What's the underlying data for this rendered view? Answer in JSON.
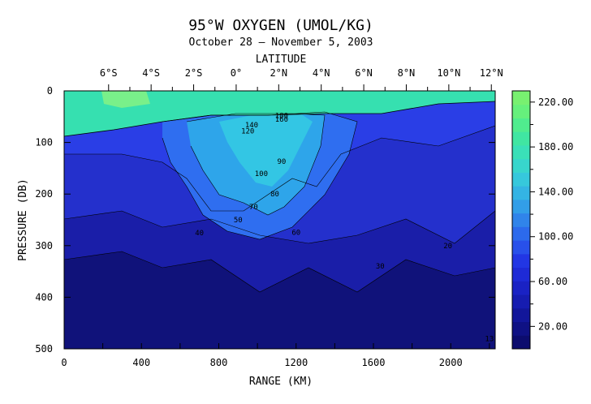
{
  "chart_data": {
    "type": "heatmap",
    "title": "95°W OXYGEN (UMOL/KG)",
    "subtitle": "October 28 – November 5, 2003",
    "top_axis_label": "LATITUDE",
    "top_ticks": [
      {
        "label": "6°S",
        "x": 230
      },
      {
        "label": "4°S",
        "x": 450
      },
      {
        "label": "2°S",
        "x": 670
      },
      {
        "label": "0°",
        "x": 890
      },
      {
        "label": "2°N",
        "x": 1110
      },
      {
        "label": "4°N",
        "x": 1330
      },
      {
        "label": "6°N",
        "x": 1550
      },
      {
        "label": "8°N",
        "x": 1770
      },
      {
        "label": "10°N",
        "x": 1990
      },
      {
        "label": "12°N",
        "x": 2210
      }
    ],
    "xlabel": "RANGE (KM)",
    "ylabel": "PRESSURE (DB)",
    "xlim": [
      0,
      2230
    ],
    "ylim": [
      0,
      500
    ],
    "x_ticks": [
      0,
      400,
      800,
      1200,
      1600,
      2000
    ],
    "y_ticks": [
      0,
      100,
      200,
      300,
      400,
      500
    ],
    "colorbar": {
      "min": 0,
      "max": 230,
      "labels": [
        "20.00",
        "60.00",
        "100.00",
        "140.00",
        "180.00",
        "220.00"
      ],
      "label_values": [
        20,
        60,
        100,
        140,
        180,
        220
      ]
    },
    "contour_labels": [
      {
        "text": "180",
        "x": 1125,
        "y": 48
      },
      {
        "text": "160",
        "x": 1125,
        "y": 55
      },
      {
        "text": "140",
        "x": 970,
        "y": 66
      },
      {
        "text": "120",
        "x": 950,
        "y": 78
      },
      {
        "text": "100",
        "x": 1020,
        "y": 160
      },
      {
        "text": "90",
        "x": 1125,
        "y": 137
      },
      {
        "text": "80",
        "x": 1090,
        "y": 200
      },
      {
        "text": "70",
        "x": 980,
        "y": 225
      },
      {
        "text": "60",
        "x": 1200,
        "y": 274
      },
      {
        "text": "50",
        "x": 900,
        "y": 250
      },
      {
        "text": "40",
        "x": 700,
        "y": 275
      },
      {
        "text": "30",
        "x": 1635,
        "y": 340
      },
      {
        "text": "20",
        "x": 1985,
        "y": 300
      },
      {
        "text": "13",
        "x": 2200,
        "y": 480
      }
    ]
  }
}
